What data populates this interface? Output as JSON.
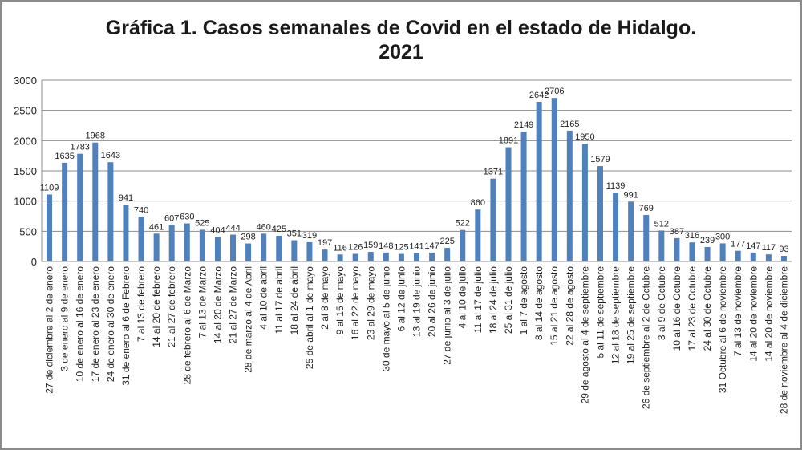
{
  "chart_data": {
    "type": "bar",
    "title_line1": "Gráfica 1. Casos semanales de Covid en el estado de Hidalgo.",
    "title_line2": "2021",
    "xlabel": "",
    "ylabel": "",
    "ylim": [
      0,
      3000
    ],
    "yticks": [
      0,
      500,
      1000,
      1500,
      2000,
      2500,
      3000
    ],
    "grid": true,
    "legend": "none",
    "bar_color": "#4f81bd",
    "categories": [
      "27 de diciembre al 2 de enero",
      "3 de enero al 9 de enero",
      "10 de enero al 16 de enero",
      "17 de enero al 23 de enero",
      "24 de enero al 30 de enero",
      "31 de enero al 6 de Febrero",
      "7 al 13 de febrero",
      "14 al 20 de febrero",
      "21 al 27 de febrero",
      "28 de febrero al 6 de Marzo",
      "7 al 13 de Marzo",
      "14 al 20 de Marzo",
      "21 al 27 de Marzo",
      "28 de marzo al 4 de Abril",
      "4 al 10 de abril",
      "11 al 17 de abril",
      "18 al 24 de abril",
      "25 de abril al 1 de mayo",
      "2 al 8 de mayo",
      "9 al 15 de mayo",
      "16 al 22 de mayo",
      "23 al 29 de mayo",
      "30 de mayo al 5 de junio",
      "6 al 12 de junio",
      "13 al 19 de junio",
      "20 al 26 de junio",
      "27 de junio al 3 de julio",
      "4 al 10 de julio",
      "11 al 17 de julio",
      "18 al 24 de julio",
      "25 al 31 de julio",
      "1 al 7 de agosto",
      "8 al 14 de agosto",
      "15 al 21 de agosto",
      "22 al 28 de agosto",
      "29 de agosto al 4 de septiembre",
      "5 al 11 de septiembre",
      "12 al 18 de septiembre",
      "19 al 25 de septiembre",
      "26 de septiembre al 2 de Octubre",
      "3 al 9 de Octubre",
      "10 al 16 de Octubre",
      "17 al 23 de Octubre",
      "24 al 30 de Octubre",
      "31 Octubre al 6 de noviembre",
      "7 al 13 de noviembre",
      "14 al 20 de noviembre",
      "14 al 20 de noviembre",
      "28 de noviembre al 4 de diciembre"
    ],
    "values": [
      1109,
      1635,
      1783,
      1968,
      1643,
      941,
      740,
      461,
      607,
      630,
      525,
      404,
      444,
      298,
      460,
      425,
      351,
      319,
      197,
      116,
      126,
      159,
      148,
      125,
      141,
      147,
      225,
      522,
      860,
      1371,
      1891,
      2149,
      2642,
      2706,
      2165,
      1950,
      1579,
      1139,
      991,
      769,
      512,
      387,
      316,
      239,
      300,
      177,
      147,
      117,
      93
    ]
  }
}
